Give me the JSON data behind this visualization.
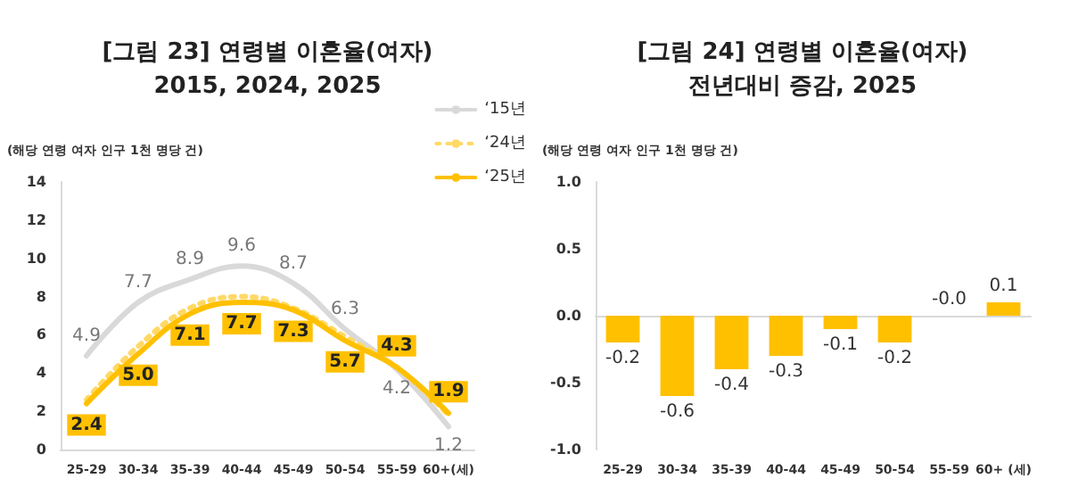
{
  "chart_data": [
    {
      "type": "line",
      "title": "[그림 23] 연령별 이혼율(여자)",
      "subtitle": "2015, 2024, 2025",
      "ylabel": "(해당 연령 여자 인구 1천 명당 건)",
      "categories": [
        "25-29",
        "30-34",
        "35-39",
        "40-44",
        "45-49",
        "50-54",
        "55-59",
        "60+(세)"
      ],
      "series": [
        {
          "name": "‘15년",
          "color": "#d9d9d9",
          "values": [
            4.9,
            7.7,
            8.9,
            9.6,
            8.7,
            6.3,
            4.2,
            1.2
          ],
          "value_labels": [
            "4.9",
            "7.7",
            "8.9",
            "9.6",
            "8.7",
            "6.3",
            "4.2",
            "1.2"
          ],
          "line_style": "solid"
        },
        {
          "name": "‘24년",
          "color": "#ffd966",
          "values": [
            2.6,
            5.4,
            7.4,
            8.0,
            7.4,
            5.9,
            4.3,
            1.8
          ],
          "line_style": "dotted"
        },
        {
          "name": "‘25년",
          "color": "#ffc000",
          "values": [
            2.4,
            5.0,
            7.1,
            7.7,
            7.3,
            5.7,
            4.3,
            1.9
          ],
          "value_labels": [
            "2.4",
            "5.0",
            "7.1",
            "7.7",
            "7.3",
            "5.7",
            "4.3",
            "1.9"
          ],
          "line_style": "solid"
        }
      ],
      "ylim": [
        0,
        14
      ],
      "yticks": [
        0,
        2,
        4,
        6,
        8,
        10,
        12,
        14
      ],
      "legend": "top right",
      "marker": "none"
    },
    {
      "type": "bar",
      "title": "[그림 24] 연령별 이혼율(여자)",
      "subtitle": "전년대비 증감, 2025",
      "ylabel": "(해당 연령 여자 인구 1천 명당 건)",
      "categories": [
        "25-29",
        "30-34",
        "35-39",
        "40-44",
        "45-49",
        "50-54",
        "55-59",
        "60+ (세)"
      ],
      "values": [
        -0.2,
        -0.6,
        -0.4,
        -0.3,
        -0.1,
        -0.2,
        0,
        0.1
      ],
      "value_labels": [
        "-0.2",
        "-0.6",
        "-0.4",
        "-0.3",
        "-0.1",
        "-0.2",
        "-0.0",
        "0.1"
      ],
      "color": "#ffc000",
      "ylim": [
        -1,
        1
      ],
      "yticks": [
        {
          "value": -1,
          "label": "-1.0"
        },
        {
          "value": -0.5,
          "label": "-0.5"
        },
        {
          "value": 0,
          "label": "0.0"
        },
        {
          "value": 0.5,
          "label": "0.5"
        },
        {
          "value": 1,
          "label": "1.0"
        }
      ]
    }
  ]
}
